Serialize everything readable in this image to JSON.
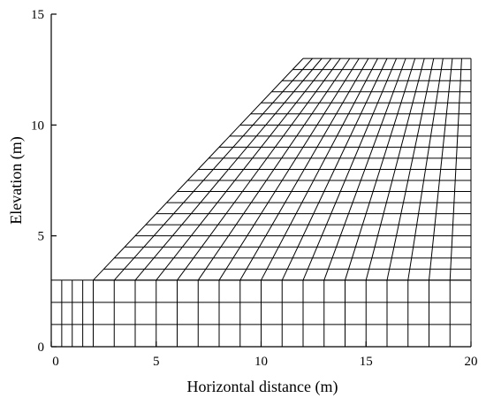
{
  "chart_data": {
    "type": "diagram",
    "description_kind": "finite-element mesh of a slope",
    "xlabel": "Horizontal distance (m)",
    "ylabel": "Elevation (m)",
    "xlim": [
      0,
      20
    ],
    "ylim": [
      0,
      15
    ],
    "x_ticks": [
      "0",
      "5",
      "10",
      "15",
      "20"
    ],
    "y_ticks": [
      "0",
      "5",
      "10",
      "15"
    ],
    "x_tick_values": [
      0,
      5,
      10,
      15,
      20
    ],
    "y_tick_values": [
      0,
      5,
      10,
      15
    ],
    "mesh": {
      "outline": [
        [
          0,
          0
        ],
        [
          20,
          0
        ],
        [
          20,
          13
        ],
        [
          12,
          13
        ],
        [
          2,
          3
        ],
        [
          0,
          3
        ]
      ],
      "foundation_top": 3,
      "slope_toe": [
        2,
        3
      ],
      "slope_crest": [
        12,
        13
      ],
      "crest_elevation": 13,
      "foundation_x_nodes": [
        0,
        0.5,
        1.0,
        1.5,
        2.0,
        3.0,
        4.0,
        5.0,
        6.0,
        7.0,
        8.0,
        9.0,
        10.0,
        11.0,
        12.0,
        13.0,
        14.0,
        15.0,
        16.0,
        17.0,
        18.0,
        19.0,
        20.0
      ],
      "foundation_y_nodes": [
        0,
        1,
        2,
        3
      ],
      "slope_rows": 20,
      "slope_columns": 18
    },
    "line_color": "#000000",
    "background": "#ffffff"
  }
}
